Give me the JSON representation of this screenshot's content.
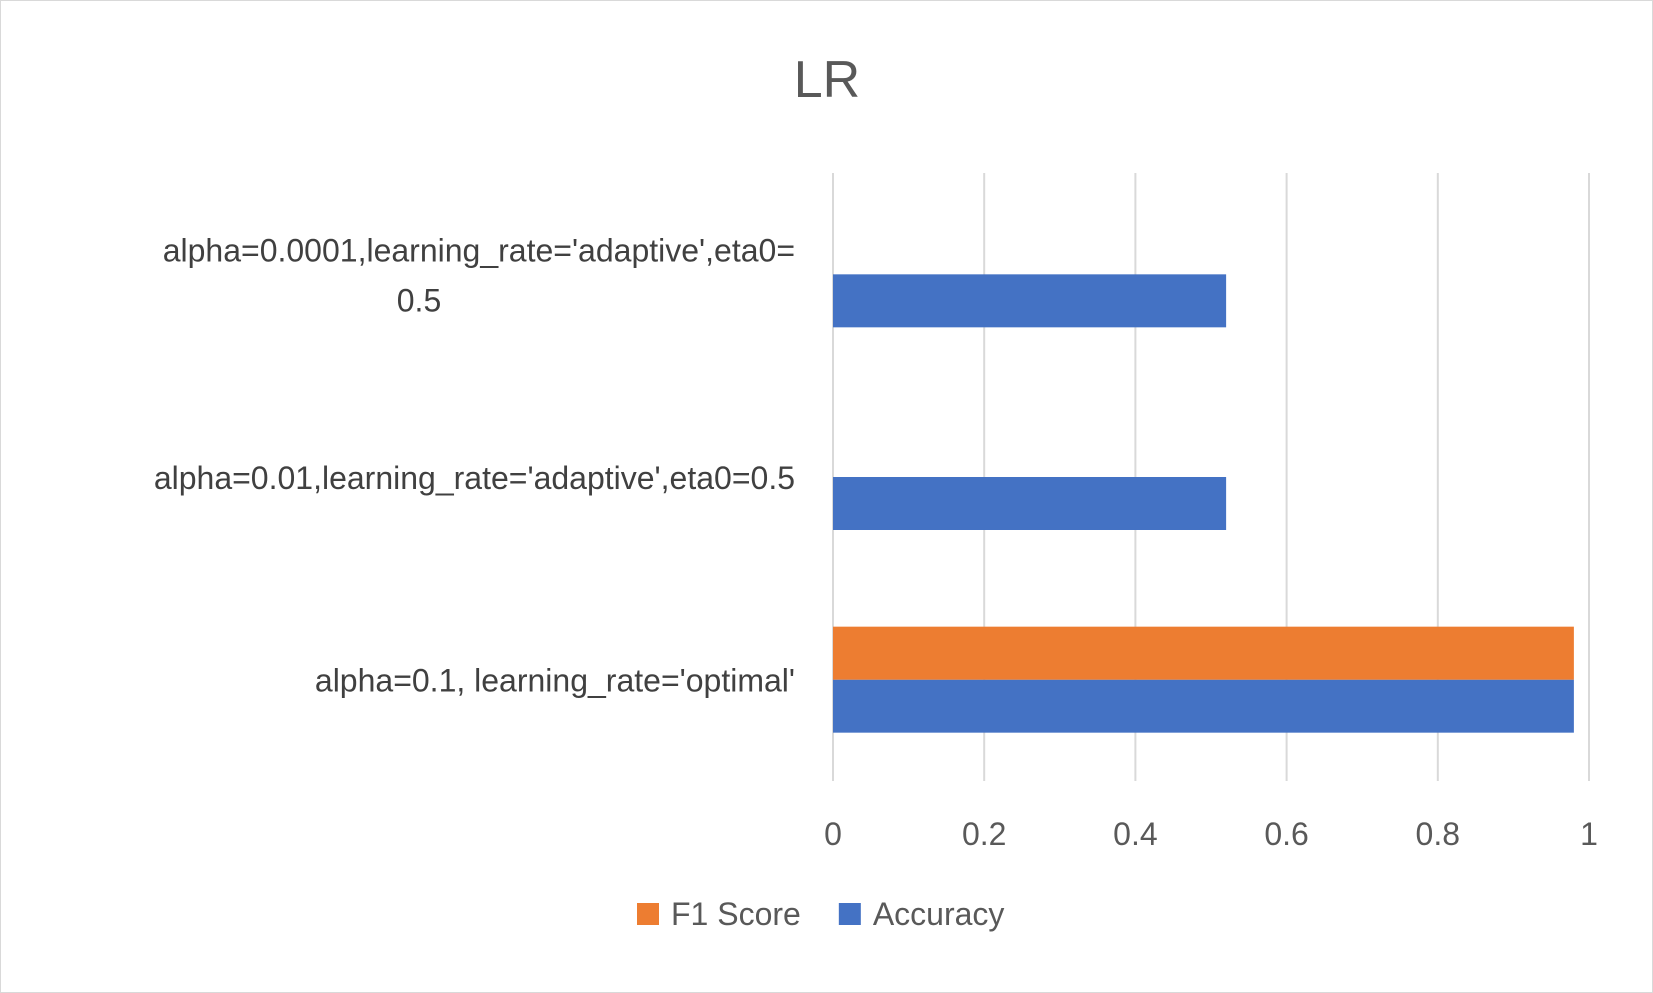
{
  "chart_data": {
    "type": "bar",
    "orientation": "horizontal",
    "title": "LR",
    "xlabel": "",
    "ylabel": "",
    "xlim": [
      0,
      1
    ],
    "x_ticks": [
      "0",
      "0.2",
      "0.4",
      "0.6",
      "0.8",
      "1"
    ],
    "categories": [
      "alpha=0.1, learning_rate='optimal'",
      "alpha=0.01,learning_rate='adaptive',eta0=0.5",
      "alpha=0.0001,learning_rate='adaptive',eta0=0.5"
    ],
    "category_label_lines": [
      [
        "alpha=0.1, learning_rate='optimal'"
      ],
      [
        "alpha=0.01,learning_rate='adaptive',eta0=0.5"
      ],
      [
        "alpha=0.0001,learning_rate='adaptive',eta0=",
        "0.5"
      ]
    ],
    "series": [
      {
        "name": "Accuracy",
        "color": "#4472c4",
        "values": [
          0.98,
          0.52,
          0.52
        ]
      },
      {
        "name": "F1 Score",
        "color": "#ed7d31",
        "values": [
          0.98,
          0.0,
          0.0
        ]
      }
    ],
    "legend_order": [
      "F1 Score",
      "Accuracy"
    ],
    "grid": true,
    "legend_position": "bottom"
  }
}
